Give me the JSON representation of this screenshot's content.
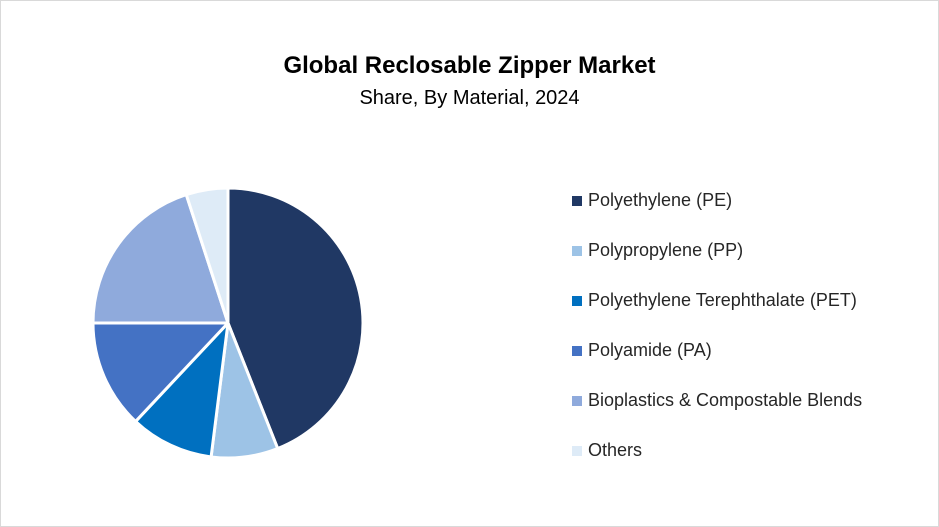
{
  "chart_data": {
    "type": "pie",
    "title": "Global Reclosable Zipper Market",
    "subtitle": "Share, By Material, 2024",
    "legend_position": "right",
    "series": [
      {
        "name": "Polyethylene (PE)",
        "value": 44,
        "color": "#203864"
      },
      {
        "name": "Polypropylene (PP)",
        "value": 8,
        "color": "#9dc3e6"
      },
      {
        "name": "Polyethylene Terephthalate (PET)",
        "value": 10,
        "color": "#0070c0"
      },
      {
        "name": "Polyamide (PA)",
        "value": 13,
        "color": "#4472c4"
      },
      {
        "name": "Bioplastics & Compostable Blends",
        "value": 20,
        "color": "#8faadc"
      },
      {
        "name": "Others",
        "value": 5,
        "color": "#deebf7"
      }
    ]
  }
}
